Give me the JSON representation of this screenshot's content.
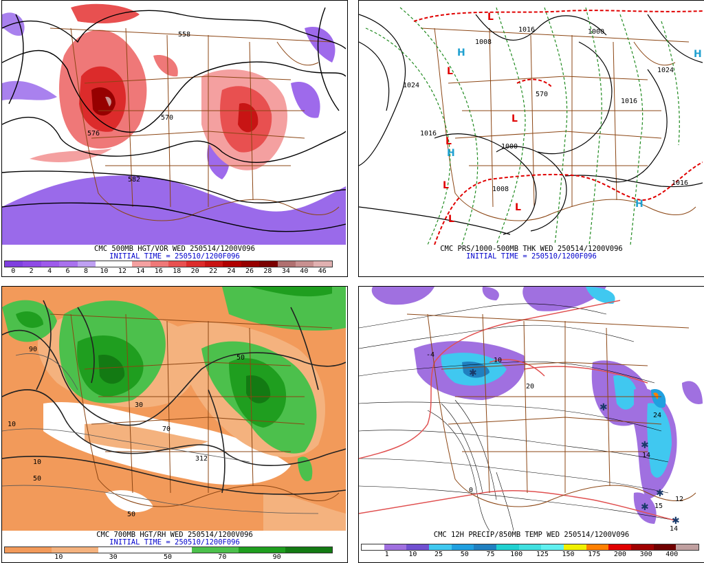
{
  "panels": [
    {
      "id": "vort",
      "caption_line1": "CMC 500MB HGT/VOR WED 250514/1200V096",
      "caption_line2": "INITIAL TIME = 250510/1200F096",
      "contour_labels": [
        "558",
        "570",
        "576",
        "582"
      ],
      "legend": {
        "colors": [
          "#7f3fdf",
          "#8f4ae6",
          "#9e5aeb",
          "#a971ee",
          "#bfa0f2",
          "#ffffff",
          "#ffffff",
          "#f4a0a0",
          "#ef7878",
          "#e85050",
          "#dc2b2b",
          "#c81414",
          "#b00000",
          "#960000",
          "#7a0000",
          "#b07070",
          "#c89090",
          "#e0b0b0"
        ],
        "ticks": [
          "0",
          "2",
          "4",
          "6",
          "8",
          "10",
          "12",
          "14",
          "16",
          "18",
          "20",
          "22",
          "24",
          "26",
          "28",
          "34",
          "40",
          "46"
        ]
      }
    },
    {
      "id": "mslp",
      "caption_line1": "CMC PRS/1000-500MB THK WED 250514/1200V096",
      "caption_line2": "INITIAL TIME = 250510/1200F096",
      "isobar_labels": [
        "1008",
        "1016",
        "1000",
        "1024",
        "1016",
        "1016",
        "1000",
        "1008",
        "1016",
        "1024",
        "570"
      ],
      "pressure_centers": [
        "L",
        "L",
        "L",
        "L",
        "L",
        "L",
        "L",
        "H",
        "H",
        "H",
        "H"
      ]
    },
    {
      "id": "rh",
      "caption_line1": "CMC 700MB HGT/RH WED 250514/1200V096",
      "caption_line2": "INITIAL TIME = 250510/1200F096",
      "contour_labels": [
        "10",
        "50",
        "30",
        "90",
        "70",
        "312",
        "50",
        "10",
        "50"
      ],
      "legend": {
        "colors": [
          "#f29a5a",
          "#f4b27e",
          "#ffffff",
          "#ffffff",
          "#4cc04c",
          "#1f9e1f",
          "#137a13"
        ],
        "ticks": [
          "10",
          "30",
          "50",
          "70",
          "90"
        ]
      }
    },
    {
      "id": "precip",
      "caption_line1": "CMC 12H PRECIP/850MB TEMP WED 250514/1200V096",
      "caption_line2": "",
      "contour_labels": [
        "20",
        "10",
        "0",
        "-4",
        "14",
        "15",
        "12",
        "14",
        "24"
      ],
      "legend": {
        "colors": [
          "#ffffff",
          "#a070e0",
          "#7050d0",
          "#40c8f0",
          "#20a0e0",
          "#2080c0",
          "#20d0d0",
          "#40e0e0",
          "#60f0f0",
          "#f0f000",
          "#ff8000",
          "#e00000",
          "#a00000",
          "#700000",
          "#c0a0a0"
        ],
        "ticks": [
          "1",
          "10",
          "25",
          "50",
          "75",
          "100",
          "125",
          "150",
          "175",
          "200",
          "300",
          "400"
        ]
      }
    }
  ]
}
